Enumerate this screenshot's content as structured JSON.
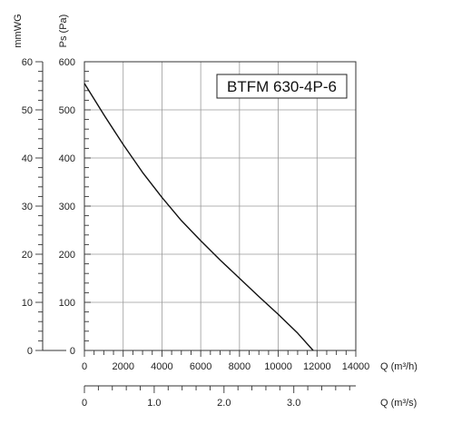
{
  "chart_data": {
    "type": "line",
    "model": "BTFM 630-4P-6",
    "x_label": "Q (m³/h)",
    "x2_label": "Q (m³/s)",
    "y_label": "Ps (Pa)",
    "y2_label": "mmWG",
    "xlim": [
      0,
      14000
    ],
    "ylim": [
      0,
      600
    ],
    "x2lim": [
      0,
      3.888
    ],
    "y2lim": [
      0,
      60
    ],
    "x_ticks": [
      0,
      2000,
      4000,
      6000,
      8000,
      10000,
      12000,
      14000
    ],
    "x_tick_labels": [
      "0",
      "2000",
      "4000",
      "6000",
      "8000",
      "10000",
      "12000",
      "14000"
    ],
    "y_ticks": [
      0,
      100,
      200,
      300,
      400,
      500,
      600
    ],
    "y_tick_labels": [
      "0",
      "100",
      "200",
      "300",
      "400",
      "500",
      "600"
    ],
    "x2_ticks": [
      0,
      1.0,
      2.0,
      3.0
    ],
    "x2_tick_labels": [
      "0",
      "1.0",
      "2.0",
      "3.0"
    ],
    "y2_ticks": [
      0,
      10,
      20,
      30,
      40,
      50,
      60
    ],
    "y2_tick_labels": [
      "0",
      "10",
      "20",
      "30",
      "40",
      "50",
      "60"
    ],
    "grid": true,
    "series": [
      {
        "x": [
          0,
          1000,
          2000,
          3000,
          4000,
          5000,
          6000,
          7000,
          8000,
          9000,
          10000,
          11000,
          11800
        ],
        "y": [
          555,
          490,
          428,
          370,
          318,
          270,
          228,
          188,
          150,
          112,
          75,
          36,
          0
        ]
      }
    ]
  }
}
